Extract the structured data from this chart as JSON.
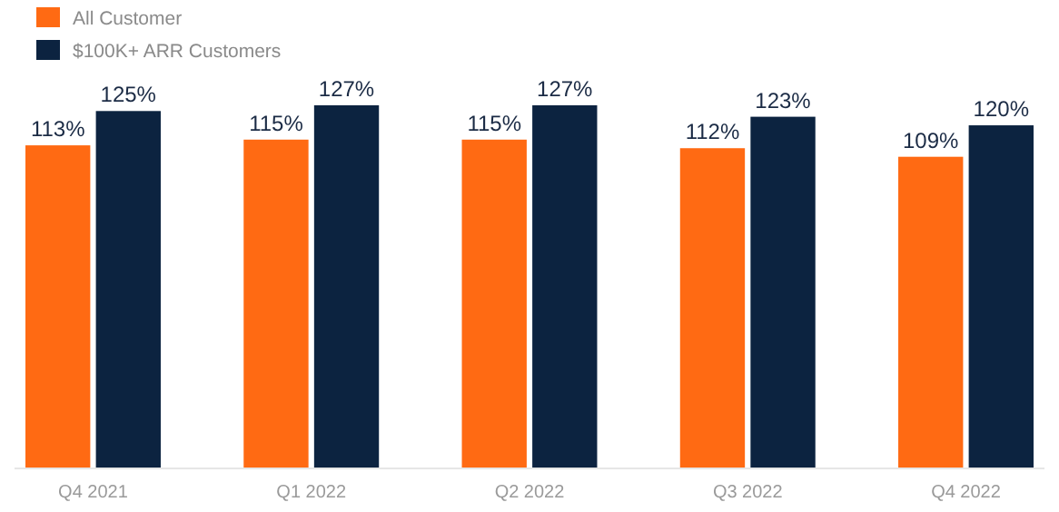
{
  "chart_data": {
    "type": "bar",
    "categories": [
      "Q4 2021",
      "Q1 2022",
      "Q2 2022",
      "Q3 2022",
      "Q4 2022"
    ],
    "series": [
      {
        "name": "All Customer",
        "color": "#ff6a13",
        "values": [
          113,
          115,
          115,
          112,
          109
        ],
        "value_labels": [
          "113%",
          "115%",
          "115%",
          "112%",
          "109%"
        ]
      },
      {
        "name": "$100K+ ARR Customers",
        "color": "#0c2340",
        "values": [
          125,
          127,
          127,
          123,
          120
        ],
        "value_labels": [
          "125%",
          "127%",
          "127%",
          "123%",
          "120%"
        ]
      }
    ],
    "legend": "top left",
    "grid": false
  }
}
